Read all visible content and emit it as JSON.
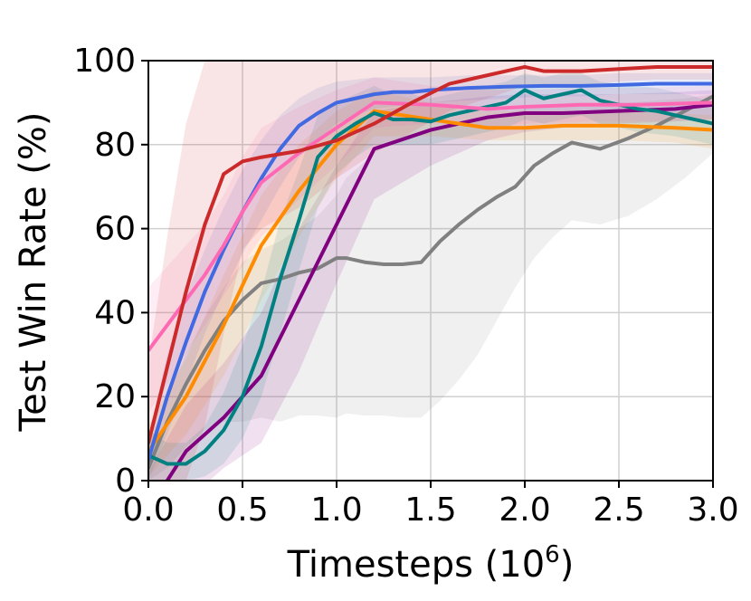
{
  "chart_data": {
    "type": "line",
    "title": "",
    "xlabel": "Timesteps (10",
    "xlabel_exponent": "6",
    "xlabel_suffix": ")",
    "ylabel": "Test Win Rate (%)",
    "xlim": [
      0,
      3.0
    ],
    "ylim": [
      0,
      100
    ],
    "xticks": [
      "0.0",
      "0.5",
      "1.0",
      "1.5",
      "2.0",
      "2.5",
      "3.0"
    ],
    "yticks": [
      "0",
      "20",
      "40",
      "60",
      "80",
      "100"
    ],
    "grid": true,
    "legend": "none",
    "series": [
      {
        "color": "#808080",
        "x": [
          0,
          0.1,
          0.2,
          0.3,
          0.4,
          0.5,
          0.6,
          0.7,
          0.8,
          0.9,
          1.0,
          1.05,
          1.15,
          1.25,
          1.35,
          1.45,
          1.55,
          1.65,
          1.75,
          1.85,
          1.95,
          2.05,
          2.15,
          2.25,
          2.4,
          2.55,
          2.7,
          2.85,
          3.0
        ],
        "y": [
          3,
          14,
          23,
          31,
          38,
          43,
          47,
          48,
          49.5,
          50.5,
          53,
          53,
          52,
          51.5,
          51.5,
          52,
          57,
          61,
          64.5,
          67.5,
          70,
          75,
          78,
          80.5,
          79,
          81.5,
          84.5,
          88,
          91.5
        ],
        "lower": [
          0,
          3,
          8,
          12,
          14,
          14,
          15,
          14,
          15.5,
          15.5,
          15,
          16,
          15.5,
          15.5,
          15,
          15,
          19,
          24,
          30,
          38,
          46,
          53,
          58,
          62,
          61,
          63,
          67,
          72,
          78
        ],
        "upper": [
          8,
          20,
          30,
          39,
          46,
          52,
          55,
          57,
          60,
          63,
          68,
          72,
          76,
          80,
          82,
          83,
          84,
          85,
          86,
          87,
          88,
          89,
          89.5,
          90,
          90,
          90,
          90.5,
          91,
          92
        ]
      },
      {
        "color": "#800080",
        "x": [
          0,
          0.2,
          0.4,
          0.6,
          0.8,
          1.0,
          1.2,
          1.5,
          1.8,
          2.0,
          2.2,
          2.5,
          2.8,
          3.0
        ],
        "y": [
          -7,
          7,
          15,
          25,
          43,
          61,
          79,
          83.5,
          86.5,
          87.5,
          87.5,
          88,
          88.5,
          89.5
        ],
        "lower": [
          -12,
          -5,
          3,
          9,
          26,
          47,
          67,
          75,
          81,
          83,
          84,
          85,
          85.5,
          86
        ],
        "upper": [
          2,
          18,
          28,
          40,
          60,
          75,
          88,
          90,
          91.5,
          92,
          92,
          92,
          92.5,
          93
        ]
      },
      {
        "color": "#FF8C00",
        "x": [
          0,
          0.2,
          0.4,
          0.6,
          0.8,
          1.0,
          1.2,
          1.5,
          1.8,
          2.0,
          2.2,
          2.5,
          2.8,
          3.0
        ],
        "y": [
          7,
          20,
          37,
          56,
          69,
          80,
          88,
          86,
          84,
          84,
          84.5,
          84.5,
          84,
          83.5
        ],
        "lower": [
          1,
          11,
          25,
          43,
          58,
          72,
          82,
          82,
          81,
          81,
          81,
          81,
          80.5,
          79
        ],
        "upper": [
          13,
          29,
          49,
          68,
          80,
          88,
          93,
          90,
          88,
          88,
          88,
          88,
          87.5,
          87
        ]
      },
      {
        "color": "#008080",
        "x": [
          0,
          0.1,
          0.2,
          0.3,
          0.4,
          0.5,
          0.6,
          0.7,
          0.8,
          0.9,
          1.0,
          1.1,
          1.2,
          1.3,
          1.4,
          1.5,
          1.6,
          1.7,
          1.8,
          1.9,
          2.0,
          2.1,
          2.2,
          2.3,
          2.4,
          2.5,
          2.6,
          2.7,
          2.8,
          2.9,
          3.0
        ],
        "y": [
          6,
          4,
          4,
          7,
          12,
          20,
          32,
          48,
          62,
          77,
          82,
          85,
          87.5,
          86,
          86,
          85.5,
          87,
          88,
          89,
          90,
          93,
          91,
          92,
          93,
          90.5,
          89.5,
          88.5,
          88,
          87,
          86,
          85
        ],
        "lower": [
          0,
          0,
          0,
          1,
          4,
          10,
          20,
          35,
          50,
          65,
          73,
          77,
          80,
          80,
          80,
          80,
          81,
          82,
          83,
          84,
          86,
          85,
          86,
          87,
          85,
          84,
          83,
          82.5,
          82,
          81,
          80
        ],
        "upper": [
          12,
          9,
          9,
          13,
          21,
          32,
          45,
          62,
          74,
          87,
          90,
          92,
          94,
          92,
          92,
          91,
          92,
          93,
          94,
          95,
          97,
          96,
          97,
          97,
          95,
          94.5,
          94,
          93.5,
          92.5,
          91.5,
          90
        ]
      },
      {
        "color": "#4169E1",
        "x": [
          0,
          0.1,
          0.2,
          0.3,
          0.4,
          0.5,
          0.6,
          0.7,
          0.8,
          0.9,
          1.0,
          1.1,
          1.2,
          1.3,
          1.4,
          1.5,
          1.7,
          1.9,
          2.1,
          2.3,
          2.5,
          2.7,
          3.0
        ],
        "y": [
          5,
          20,
          33,
          45,
          55,
          64,
          72,
          79,
          84.5,
          87.5,
          90,
          91,
          92,
          92.5,
          92.5,
          93,
          93.5,
          93.8,
          94,
          94,
          94.2,
          94.5,
          94.5
        ],
        "lower": [
          0,
          11,
          23,
          35,
          45,
          54,
          62,
          70,
          77,
          81,
          85,
          87,
          88.5,
          89,
          89.5,
          90,
          90.5,
          91,
          91.5,
          91.5,
          92,
          92,
          92
        ],
        "upper": [
          10,
          30,
          44,
          55,
          65,
          74,
          81,
          87,
          91,
          93.5,
          95,
          95.5,
          96,
          96,
          96,
          96,
          96.5,
          96.5,
          96.5,
          96.5,
          97,
          97,
          97
        ]
      },
      {
        "color": "#FF69B4",
        "x": [
          0,
          0.1,
          0.2,
          0.3,
          0.4,
          0.5,
          0.6,
          0.8,
          1.0,
          1.2,
          1.5,
          1.8,
          2.0,
          2.3,
          2.6,
          3.0
        ],
        "y": [
          31,
          37,
          43,
          49,
          56,
          64,
          71,
          78,
          84,
          90,
          89.5,
          88.5,
          89,
          89.5,
          89.5,
          90
        ],
        "lower": [
          16,
          23,
          30,
          37,
          44,
          51,
          58,
          67,
          75,
          84,
          85,
          84,
          85,
          85.5,
          85.5,
          86
        ],
        "upper": [
          46,
          51,
          56,
          61,
          68,
          77,
          84,
          89,
          93,
          96,
          94,
          93,
          93,
          93.5,
          93.5,
          94
        ]
      },
      {
        "color": "#CC2A2A",
        "x": [
          0,
          0.1,
          0.2,
          0.3,
          0.4,
          0.5,
          0.6,
          0.8,
          1.0,
          1.2,
          1.4,
          1.6,
          1.8,
          1.9,
          2.0,
          2.1,
          2.3,
          2.5,
          2.7,
          2.9,
          3.0
        ],
        "y": [
          9,
          27,
          45,
          61,
          73,
          76,
          77,
          78.5,
          81,
          85,
          90,
          94.5,
          96.5,
          97.5,
          98.5,
          97.5,
          97.5,
          98,
          98.5,
          98.5,
          98.5
        ],
        "lower": [
          0,
          0,
          0,
          13,
          35,
          55,
          60,
          65,
          72,
          78,
          83,
          88,
          91,
          92.5,
          94,
          93.5,
          94,
          95,
          95.5,
          95.5,
          95.5
        ],
        "upper": [
          28,
          58,
          85,
          100,
          100,
          100,
          100,
          100,
          100,
          100,
          100,
          100,
          100,
          100,
          100,
          100,
          100,
          100,
          100,
          100,
          100
        ]
      }
    ]
  }
}
